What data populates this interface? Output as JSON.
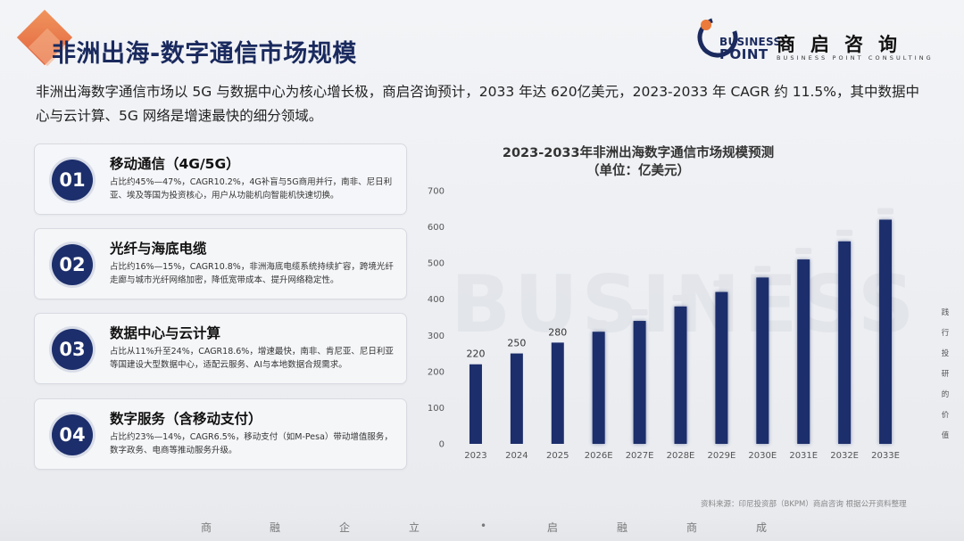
{
  "header": {
    "title": "非洲出海-数字通信市场规模",
    "logo_en_1": "BUSINESS",
    "logo_en_2": "POINT",
    "logo_cn": "商启咨询",
    "logo_sub": "BUSINESS POINT CONSULTING"
  },
  "intro": "非洲出海数字通信市场以 5G 与数据中心为核心增长极，商启咨询预计，2033 年达 620亿美元，2023-2033 年 CAGR 约 11.5%，其中数据中心与云计算、5G 网络是增速最快的细分领域。",
  "cards": [
    {
      "num": "01",
      "title": "移动通信（4G/5G）",
      "desc": "占比约45%—47%，CAGR10.2%，4G补盲与5G商用并行，南非、尼日利亚、埃及等国为投资核心，用户从功能机向智能机快速切换。"
    },
    {
      "num": "02",
      "title": "光纤与海底电缆",
      "desc": "占比约16%—15%，CAGR10.8%，非洲海底电缆系统持续扩容，跨境光纤走廊与城市光纤网络加密，降低宽带成本、提升网络稳定性。"
    },
    {
      "num": "03",
      "title": "数据中心与云计算",
      "desc": "占比从11%升至24%，CAGR18.6%，增速最快，南非、肯尼亚、尼日利亚等国建设大型数据中心，适配云服务、AI与本地数据合规需求。"
    },
    {
      "num": "04",
      "title": "数字服务（含移动支付）",
      "desc": "占比约23%—14%，CAGR6.5%，移动支付（如M-Pesa）带动增值服务，数字政务、电商等推动服务升级。"
    }
  ],
  "chart_data": {
    "type": "bar",
    "title": "2023-2033年非洲出海数字通信市场规模预测",
    "subtitle": "（单位：亿美元）",
    "categories": [
      "2023",
      "2024",
      "2025",
      "2026E",
      "2027E",
      "2028E",
      "2029E",
      "2030E",
      "2031E",
      "2032E",
      "2033E"
    ],
    "values": [
      220,
      250,
      280,
      310,
      340,
      380,
      420,
      460,
      510,
      560,
      620
    ],
    "data_labels": [
      "220",
      "250",
      "280",
      "",
      "",
      "",
      "",
      "",
      "",
      "",
      ""
    ],
    "ylim": [
      0,
      700
    ],
    "yticks": [
      0,
      100,
      200,
      300,
      400,
      500,
      600,
      700
    ],
    "grid": false,
    "bar_color": "#1c2e6b"
  },
  "side_text": "践行投研的价值",
  "source": "资料来源：印尼投资部（BKPM）商启咨询 根据公开资料整理",
  "motto": [
    "商",
    "融",
    "企",
    "立",
    "•",
    "启",
    "融",
    "商",
    "成"
  ],
  "watermark": "BUSINESS"
}
